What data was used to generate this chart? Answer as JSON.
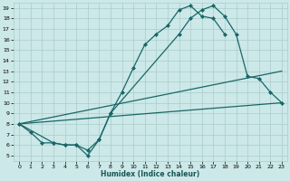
{
  "background_color": "#cce8e8",
  "grid_color": "#aacccc",
  "line_color": "#1a6666",
  "xlabel": "Humidex (Indice chaleur)",
  "xlim": [
    -0.5,
    23.5
  ],
  "ylim": [
    4.5,
    19.5
  ],
  "xticks": [
    0,
    1,
    2,
    3,
    4,
    5,
    6,
    7,
    8,
    9,
    10,
    11,
    12,
    13,
    14,
    15,
    16,
    17,
    18,
    19,
    20,
    21,
    22,
    23
  ],
  "yticks": [
    5,
    6,
    7,
    8,
    9,
    10,
    11,
    12,
    13,
    14,
    15,
    16,
    17,
    18,
    19
  ],
  "lines": [
    {
      "x": [
        0,
        1,
        2,
        3,
        4,
        5,
        6,
        7,
        8,
        9,
        10,
        11,
        12,
        13,
        14,
        15,
        16,
        17,
        18
      ],
      "y": [
        8.0,
        7.2,
        6.2,
        6.2,
        6.0,
        6.0,
        5.0,
        6.5,
        9.0,
        11.0,
        13.3,
        15.5,
        16.5,
        17.3,
        18.8,
        19.2,
        18.2,
        18.0,
        16.5
      ],
      "marker": true,
      "linestyle": "-"
    },
    {
      "x": [
        0,
        3,
        4,
        5,
        6,
        7,
        8,
        14,
        15,
        16,
        17,
        18,
        19,
        20,
        21,
        22,
        23
      ],
      "y": [
        8.0,
        6.2,
        6.0,
        6.0,
        5.5,
        6.5,
        9.0,
        16.5,
        18.0,
        18.8,
        19.2,
        18.2,
        16.5,
        12.5,
        12.3,
        11.0,
        10.0
      ],
      "marker": true,
      "linestyle": "-"
    },
    {
      "x": [
        0,
        23
      ],
      "y": [
        8.0,
        13.0
      ],
      "marker": false,
      "linestyle": "-"
    },
    {
      "x": [
        0,
        23
      ],
      "y": [
        8.0,
        10.0
      ],
      "marker": false,
      "linestyle": "-"
    }
  ]
}
